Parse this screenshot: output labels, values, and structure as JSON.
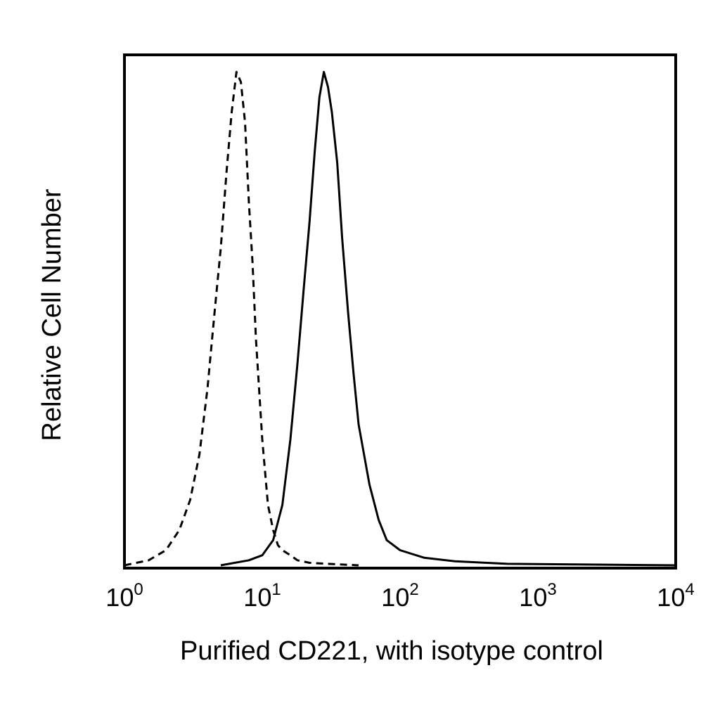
{
  "chart_data": {
    "type": "line",
    "title": "",
    "xlabel": "Purified CD221, with isotype control",
    "ylabel": "Relative Cell Number",
    "x_scale": "log",
    "xlim": [
      1,
      10000
    ],
    "ylim": [
      0,
      100
    ],
    "grid": false,
    "x_ticks": [
      {
        "base": "10",
        "exp": "0",
        "value": 1
      },
      {
        "base": "10",
        "exp": "1",
        "value": 10
      },
      {
        "base": "10",
        "exp": "2",
        "value": 100
      },
      {
        "base": "10",
        "exp": "3",
        "value": 1000
      },
      {
        "base": "10",
        "exp": "4",
        "value": 10000
      }
    ],
    "series": [
      {
        "style": "dashed",
        "color": "#000000",
        "x": [
          1.0,
          1.5,
          2.0,
          2.5,
          3.0,
          3.5,
          4.0,
          4.5,
          5.0,
          5.5,
          6.0,
          6.5,
          7.0,
          7.5,
          8.0,
          8.5,
          9.0,
          10.0,
          11.0,
          12.0,
          13.0,
          14.0,
          16.0,
          18.0,
          22.0,
          30.0,
          50.0
        ],
        "y": [
          0,
          1,
          3,
          7,
          13,
          22,
          35,
          50,
          63,
          78,
          90,
          98,
          96,
          88,
          72,
          60,
          45,
          25,
          12,
          7,
          4,
          3,
          2,
          1,
          0.5,
          0.3,
          0
        ]
      },
      {
        "style": "solid",
        "color": "#000000",
        "x": [
          5.0,
          8.0,
          10.0,
          12.0,
          14.0,
          16.0,
          18.0,
          20.0,
          22.0,
          24.0,
          26.0,
          28.0,
          30.0,
          32.0,
          35.0,
          38.0,
          42.0,
          46.0,
          50.0,
          60.0,
          70.0,
          80.0,
          100.0,
          150.0,
          250.0,
          600.0,
          10000.0
        ],
        "y": [
          0,
          1,
          2,
          5,
          12,
          25,
          40,
          55,
          68,
          82,
          93,
          98,
          95,
          90,
          80,
          65,
          50,
          38,
          28,
          16,
          9,
          5,
          3,
          1.5,
          0.8,
          0.3,
          0
        ]
      }
    ]
  }
}
